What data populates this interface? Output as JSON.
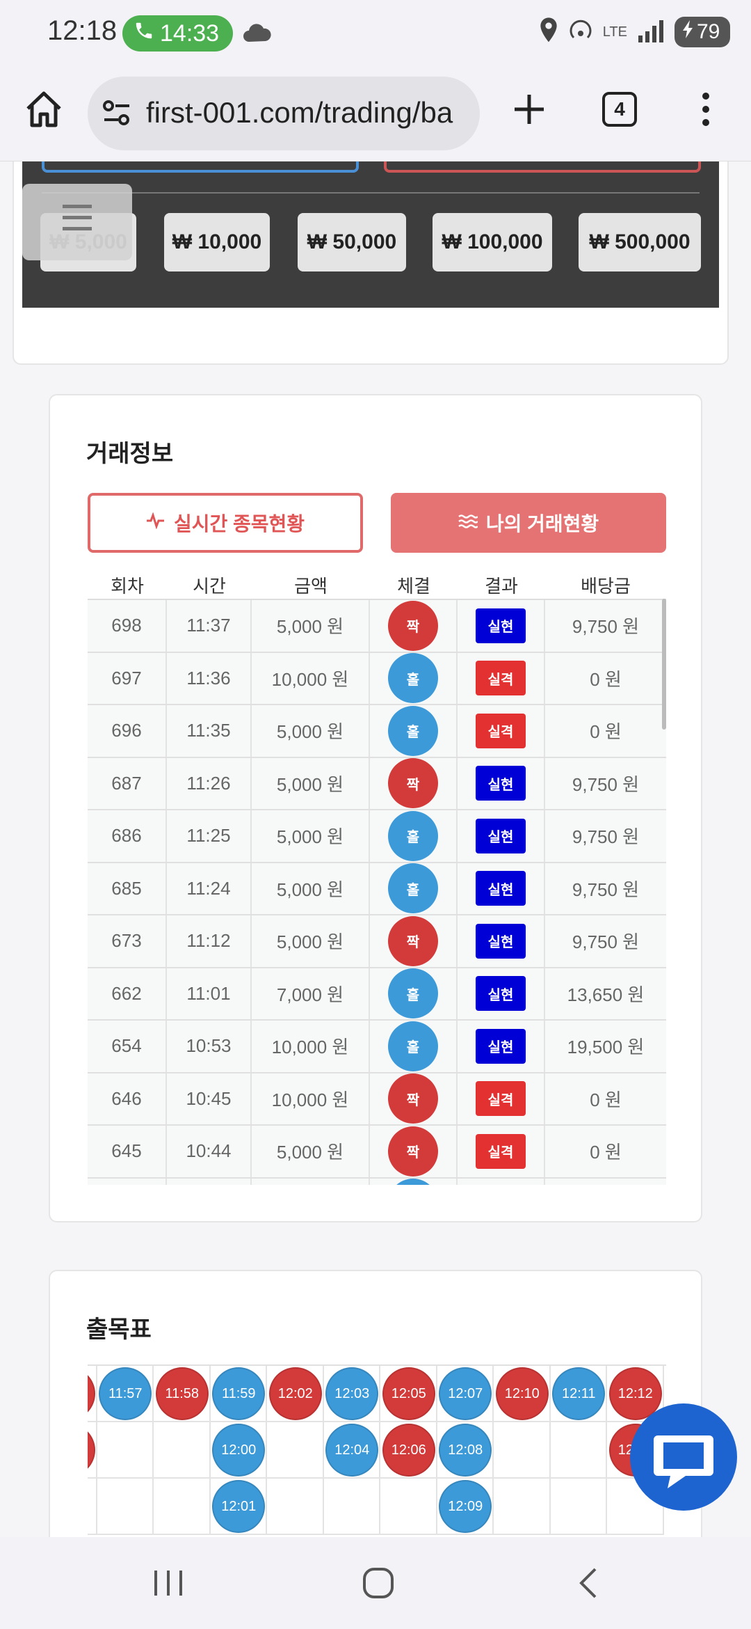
{
  "status_bar": {
    "time": "12:18",
    "call_time": "14:33",
    "network": "LTE",
    "battery": "79"
  },
  "browser": {
    "url": "first-001.com/trading/ba",
    "tab_count": "4"
  },
  "amount_buttons": [
    "₩ 5,000",
    "₩ 10,000",
    "₩ 50,000",
    "₩ 100,000",
    "₩ 500,000"
  ],
  "trade_info": {
    "title": "거래정보",
    "tab_realtime": "실시간 종목현황",
    "tab_mine": "나의 거래현황",
    "headers": [
      "회차",
      "시간",
      "금액",
      "체결",
      "결과",
      "배당금"
    ],
    "rows": [
      {
        "round": "698",
        "time": "11:37",
        "amount": "5,000 원",
        "pick": "짝",
        "pick_color": "red",
        "result": "실현",
        "result_type": "win",
        "payout": "9,750 원"
      },
      {
        "round": "697",
        "time": "11:36",
        "amount": "10,000 원",
        "pick": "홀",
        "pick_color": "blue",
        "result": "실격",
        "result_type": "lose",
        "payout": "0 원"
      },
      {
        "round": "696",
        "time": "11:35",
        "amount": "5,000 원",
        "pick": "홀",
        "pick_color": "blue",
        "result": "실격",
        "result_type": "lose",
        "payout": "0 원"
      },
      {
        "round": "687",
        "time": "11:26",
        "amount": "5,000 원",
        "pick": "짝",
        "pick_color": "red",
        "result": "실현",
        "result_type": "win",
        "payout": "9,750 원"
      },
      {
        "round": "686",
        "time": "11:25",
        "amount": "5,000 원",
        "pick": "홀",
        "pick_color": "blue",
        "result": "실현",
        "result_type": "win",
        "payout": "9,750 원"
      },
      {
        "round": "685",
        "time": "11:24",
        "amount": "5,000 원",
        "pick": "홀",
        "pick_color": "blue",
        "result": "실현",
        "result_type": "win",
        "payout": "9,750 원"
      },
      {
        "round": "673",
        "time": "11:12",
        "amount": "5,000 원",
        "pick": "짝",
        "pick_color": "red",
        "result": "실현",
        "result_type": "win",
        "payout": "9,750 원"
      },
      {
        "round": "662",
        "time": "11:01",
        "amount": "7,000 원",
        "pick": "홀",
        "pick_color": "blue",
        "result": "실현",
        "result_type": "win",
        "payout": "13,650 원"
      },
      {
        "round": "654",
        "time": "10:53",
        "amount": "10,000 원",
        "pick": "홀",
        "pick_color": "blue",
        "result": "실현",
        "result_type": "win",
        "payout": "19,500 원"
      },
      {
        "round": "646",
        "time": "10:45",
        "amount": "10,000 원",
        "pick": "짝",
        "pick_color": "red",
        "result": "실격",
        "result_type": "lose",
        "payout": "0 원"
      },
      {
        "round": "645",
        "time": "10:44",
        "amount": "5,000 원",
        "pick": "짝",
        "pick_color": "red",
        "result": "실격",
        "result_type": "lose",
        "payout": "0 원"
      }
    ]
  },
  "result_board": {
    "title": "출목표",
    "columns": [
      {
        "color": "red",
        "times": [
          "",
          ""
        ]
      },
      {
        "color": "blue",
        "times": [
          "11:57"
        ]
      },
      {
        "color": "red",
        "times": [
          "11:58"
        ]
      },
      {
        "color": "blue",
        "times": [
          "11:59",
          "12:00",
          "12:01"
        ]
      },
      {
        "color": "red",
        "times": [
          "12:02"
        ]
      },
      {
        "color": "blue",
        "times": [
          "12:03",
          "12:04"
        ]
      },
      {
        "color": "red",
        "times": [
          "12:05",
          "12:06"
        ]
      },
      {
        "color": "blue",
        "times": [
          "12:07",
          "12:08",
          "12:09"
        ]
      },
      {
        "color": "red",
        "times": [
          "12:10"
        ]
      },
      {
        "color": "blue",
        "times": [
          "12:11"
        ]
      },
      {
        "color": "red",
        "times": [
          "12:12",
          "12:13"
        ]
      }
    ]
  },
  "colors": {
    "win": "#0000d6",
    "lose": "#e33030",
    "odd": "#3d9ad8",
    "even": "#d33a3a",
    "accent": "#e57373",
    "chat": "#1e64d0"
  }
}
